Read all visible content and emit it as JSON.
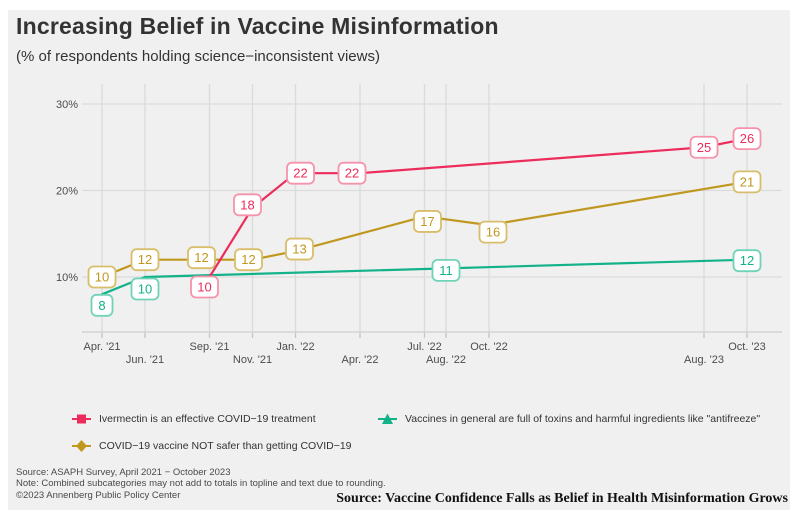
{
  "chart_data": {
    "type": "line",
    "title": "Increasing Belief in Vaccine Misinformation",
    "subtitle": "(% of respondents holding science−inconsistent views)",
    "grid": true,
    "legend_position": "bottom",
    "x_axis": {
      "tick_labels": [
        "Apr. '21",
        "Jun. '21",
        "Sep. '21",
        "Nov. '21",
        "Jan. '22",
        "Apr. '22",
        "Jul. '22",
        "Aug. '22",
        "Oct. '22",
        "Aug. '23",
        "Oct. '23"
      ],
      "tick_months_from_start": [
        0,
        2,
        5,
        7,
        9,
        12,
        15,
        16,
        18,
        28,
        30
      ],
      "stagger_labels": true
    },
    "y_axis": {
      "tick_labels": [
        "10%",
        "20%",
        "30%"
      ],
      "tick_values": [
        10,
        20,
        30
      ],
      "shown_range": [
        4,
        32
      ],
      "unit": "%"
    },
    "series": [
      {
        "name": "COVID−19 vaccine NOT safer than getting COVID−19",
        "color": "#C0981F",
        "label_border": "#D8BE6A",
        "marker": "diamond",
        "points": [
          {
            "x": "Apr. '21",
            "month": 0,
            "value": 10
          },
          {
            "x": "Jun. '21",
            "month": 2,
            "value": 12
          },
          {
            "x": "Sep. '21",
            "month": 5,
            "value": 12,
            "label_dx": -8,
            "label_dy": -2
          },
          {
            "x": "Nov. '21",
            "month": 7,
            "value": 12,
            "label_dx": -4
          },
          {
            "x": "Jan. '22",
            "month": 9,
            "value": 13,
            "label_dx": 4,
            "label_dy": -2
          },
          {
            "x": "Jul. '22",
            "month": 15,
            "value": 17,
            "label_dx": 3,
            "label_dy": 5
          },
          {
            "x": "Oct. '22",
            "month": 18,
            "value": 16,
            "label_dx": 4,
            "label_dy": 7
          },
          {
            "x": "Oct. '23",
            "month": 30,
            "value": 21
          }
        ]
      },
      {
        "name": "Vaccines in general are full of toxins and harmful ingredients like \"antifreeze\"",
        "color": "#13B289",
        "label_border": "#70D3B8",
        "marker": "triangle",
        "points": [
          {
            "x": "Apr. '21",
            "month": 0,
            "value": 8,
            "label_dy": 11
          },
          {
            "x": "Jun. '21",
            "month": 2,
            "value": 10,
            "label_dy": 12
          },
          {
            "x": "Aug. '22",
            "month": 16,
            "value": 11,
            "label_dy": 2
          },
          {
            "x": "Oct. '23",
            "month": 30,
            "value": 12,
            "label_dy": 1
          }
        ]
      },
      {
        "name": "Ivermectin is an effective COVID−19 treatment",
        "color": "#EC2C5B",
        "label_border": "#F693AB",
        "marker": "square",
        "points": [
          {
            "x": "Sep. '21",
            "month": 5,
            "value": 10,
            "label_dx": -5,
            "label_dy": 10
          },
          {
            "x": "Nov. '21",
            "month": 7,
            "value": 18,
            "label_dx": -5,
            "label_dy": -3
          },
          {
            "x": "Jan. '22",
            "month": 9,
            "value": 22,
            "label_dx": 5
          },
          {
            "x": "Apr. '22",
            "month": 12,
            "value": 22,
            "label_dx": -8
          },
          {
            "x": "Aug. '23",
            "month": 28,
            "value": 25
          },
          {
            "x": "Oct. '23",
            "month": 30,
            "value": 26
          }
        ]
      }
    ]
  },
  "legend": {
    "order_note": "column1: ivermectin (top), covid-vaccine (bottom); column2: toxins"
  },
  "captions": {
    "line1": "Source: ASAPH Survey, April 2021 − October 2023",
    "line2": "Note: Combined subcategories may not add to totals in topline and text due to rounding.",
    "line3": "©2023 Annenberg Public Policy Center",
    "source_right": "Source: Vaccine Confidence Falls as Belief in Health Misinformation Grows"
  },
  "colors": {
    "figure_background": "#F0F0F0",
    "page_background": "#FFFFFF",
    "gridline": "#DBDBDB",
    "axis_line": "#D4D4D4",
    "tick": "#C6C6C6",
    "axis_text": "#4D4D4D",
    "title_text": "#333333",
    "label_box_fill": "#FFFFFF"
  }
}
